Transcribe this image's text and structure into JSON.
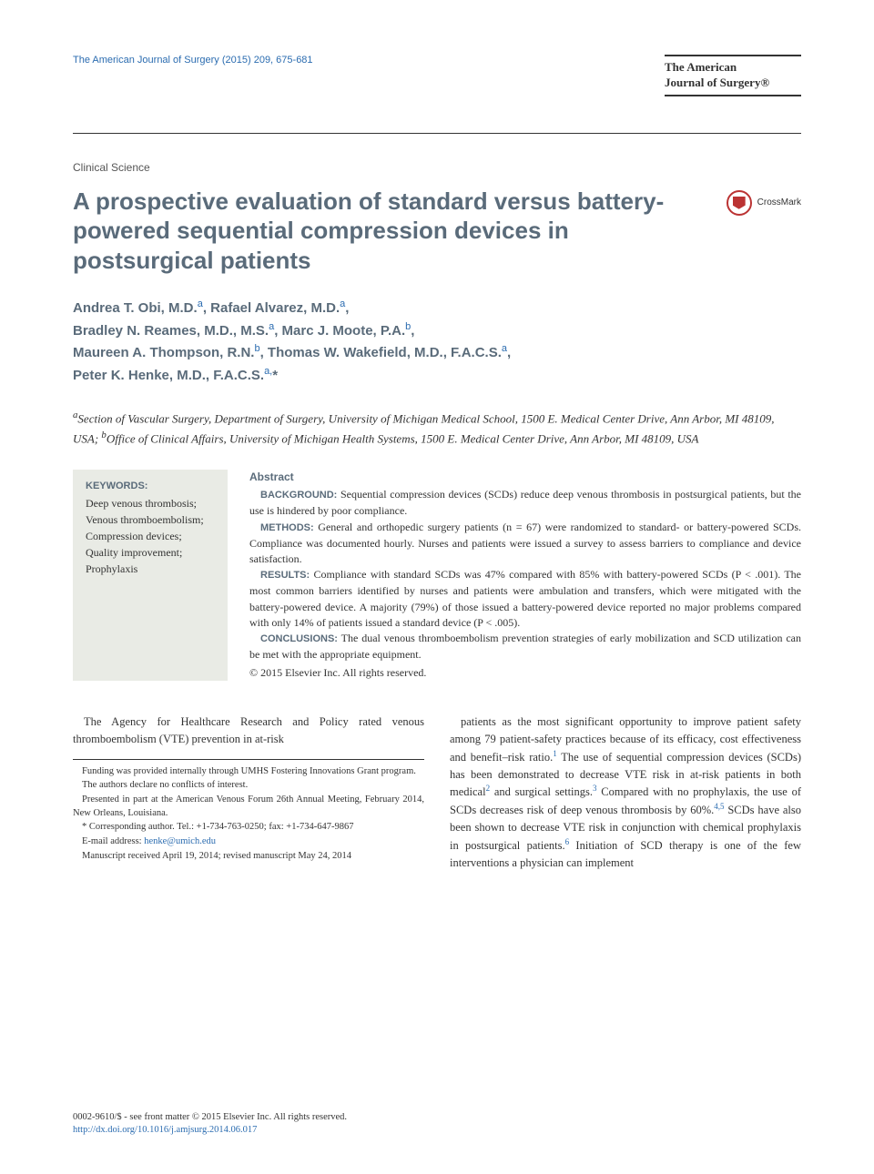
{
  "header": {
    "citation": "The American Journal of Surgery (2015) 209, 675-681",
    "journal_name_line1": "The American",
    "journal_name_line2": "Journal of Surgery®"
  },
  "article": {
    "section": "Clinical Science",
    "title": "A prospective evaluation of standard versus battery-powered sequential compression devices in postsurgical patients",
    "crossmark_label": "CrossMark"
  },
  "authors_html": "Andrea T. Obi, M.D.<sup>a</sup>, Rafael Alvarez, M.D.<sup>a</sup>,<br>Bradley N. Reames, M.D., M.S.<sup>a</sup>, Marc J. Moote, P.A.<sup>b</sup>,<br>Maureen A. Thompson, R.N.<sup>b</sup>, Thomas W. Wakefield, M.D., F.A.C.S.<sup>a</sup>,<br>Peter K. Henke, M.D., F.A.C.S.<sup>a,</sup>*",
  "affiliations_html": "<sup>a</sup>Section of Vascular Surgery, Department of Surgery, University of Michigan Medical School, 1500 E. Medical Center Drive, Ann Arbor, MI 48109, USA; <sup>b</sup>Office of Clinical Affairs, University of Michigan Health Systems, 1500 E. Medical Center Drive, Ann Arbor, MI 48109, USA",
  "keywords": {
    "label": "KEYWORDS:",
    "items": "Deep venous thrombosis;\nVenous thromboembolism;\nCompression devices;\nQuality improvement;\nProphylaxis"
  },
  "abstract": {
    "label": "Abstract",
    "background_head": "BACKGROUND:",
    "background_text": " Sequential compression devices (SCDs) reduce deep venous thrombosis in postsurgical patients, but the use is hindered by poor compliance.",
    "methods_head": "METHODS:",
    "methods_text": " General and orthopedic surgery patients (n = 67) were randomized to standard- or battery-powered SCDs. Compliance was documented hourly. Nurses and patients were issued a survey to assess barriers to compliance and device satisfaction.",
    "results_head": "RESULTS:",
    "results_text": " Compliance with standard SCDs was 47% compared with 85% with battery-powered SCDs (P < .001). The most common barriers identified by nurses and patients were ambulation and transfers, which were mitigated with the battery-powered device. A majority (79%) of those issued a battery-powered device reported no major problems compared with only 14% of patients issued a standard device (P < .005).",
    "conclusions_head": "CONCLUSIONS:",
    "conclusions_text": " The dual venous thromboembolism prevention strategies of early mobilization and SCD utilization can be met with the appropriate equipment.",
    "copyright": "© 2015 Elsevier Inc. All rights reserved."
  },
  "body": {
    "col1_html": "The Agency for Healthcare Research and Policy rated venous thromboembolism (VTE) prevention in at-risk",
    "col2_html": "patients as the most significant opportunity to improve patient safety among 79 patient-safety practices because of its efficacy, cost effectiveness and benefit–risk ratio.<sup class=\"ref-sup\">1</sup> The use of sequential compression devices (SCDs) has been demonstrated to decrease VTE risk in at-risk patients in both medical<sup class=\"ref-sup\">2</sup> and surgical settings.<sup class=\"ref-sup\">3</sup> Compared with no prophylaxis, the use of SCDs decreases risk of deep venous thrombosis by 60%.<sup class=\"ref-sup\">4,5</sup> SCDs have also been shown to decrease VTE risk in conjunction with chemical prophylaxis in postsurgical patients.<sup class=\"ref-sup\">6</sup> Initiation of SCD therapy is one of the few interventions a physician can implement"
  },
  "footnotes": {
    "f1": "Funding was provided internally through UMHS Fostering Innovations Grant program.",
    "f2": "The authors declare no conflicts of interest.",
    "f3": "Presented in part at the American Venous Forum 26th Annual Meeting, February 2014, New Orleans, Louisiana.",
    "f4": "* Corresponding author. Tel.: +1-734-763-0250; fax: +1-734-647-9867",
    "f5_label": "E-mail address: ",
    "f5_email": "henke@umich.edu",
    "f6": "Manuscript received April 19, 2014; revised manuscript May 24, 2014"
  },
  "footer": {
    "line1": "0002-9610/$ - see front matter © 2015 Elsevier Inc. All rights reserved.",
    "doi": "http://dx.doi.org/10.1016/j.amjsurg.2014.06.017"
  },
  "colors": {
    "link": "#2b6cb0",
    "heading": "#5a6b7a",
    "keyword_bg": "#e9ebe5"
  }
}
